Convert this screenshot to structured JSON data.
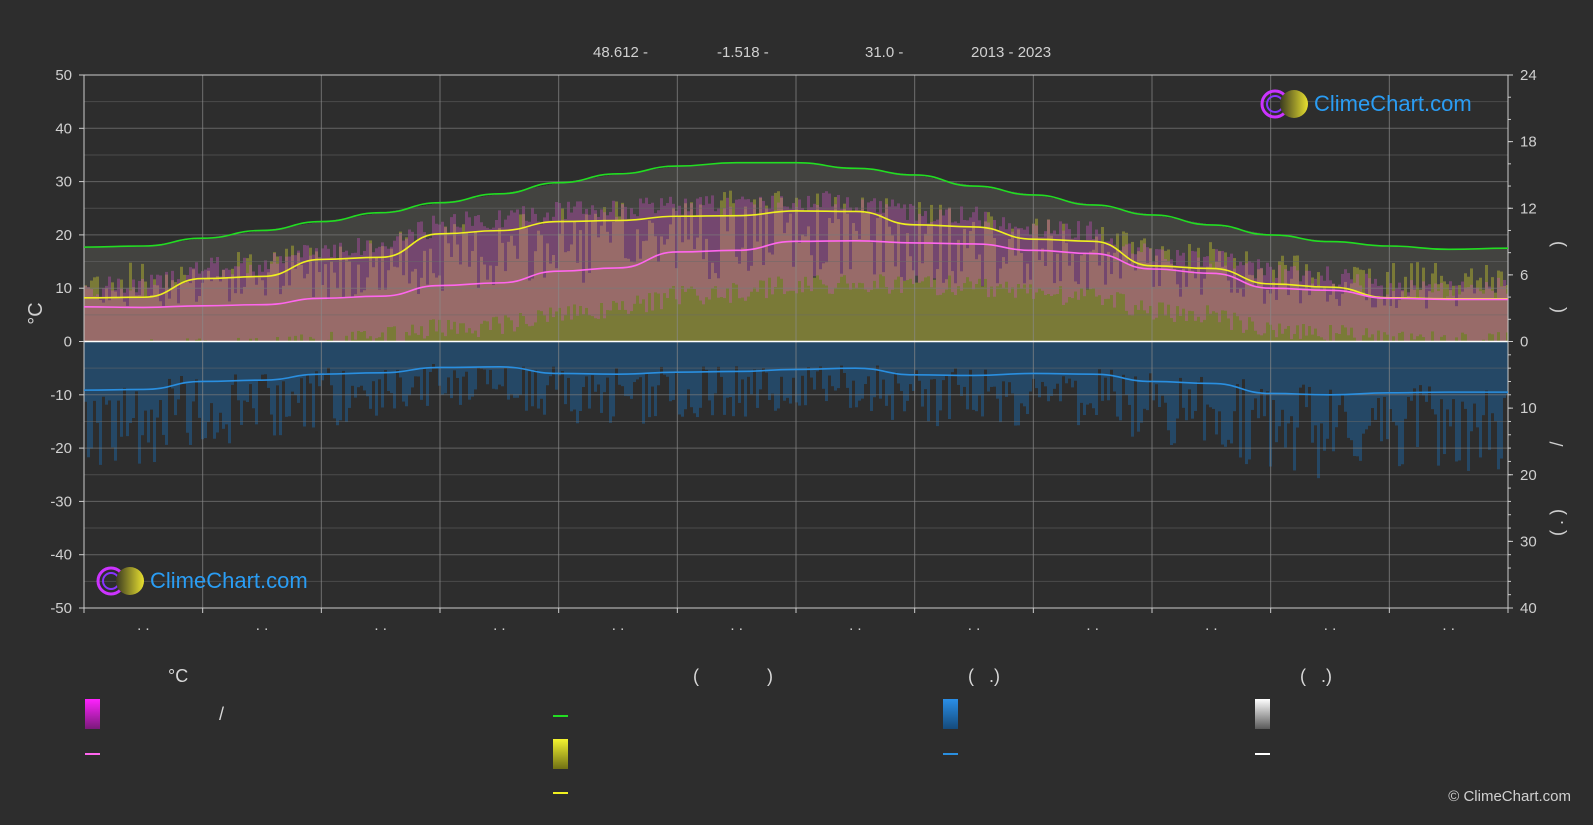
{
  "header": {
    "lat": "48.612 -",
    "lon": "-1.518 -",
    "elev": "31.0 -",
    "years": "2013 - 2023"
  },
  "logo_text": "ClimeChart.com",
  "copyright": "© ClimeChart.com",
  "legend": {
    "col1_head": "°C",
    "col1_slash": "/",
    "col2_head_open": "(",
    "col2_head_close": ")",
    "col3_head": "(   .)",
    "col4_head": "(   .)"
  },
  "chart_data": {
    "type": "line",
    "x_tick_labels": [
      ". .",
      ". .",
      ". .",
      ". .",
      ". .",
      ". .",
      ". .",
      ". .",
      ". .",
      ". .",
      ". .",
      ". ."
    ],
    "ylabel": "°C",
    "ylim": [
      -50,
      50
    ],
    "y_ticks": [
      50,
      40,
      30,
      20,
      10,
      0,
      -10,
      -20,
      -30,
      -40,
      -50
    ],
    "right_upper_ticks": [
      24,
      18,
      12,
      6,
      0
    ],
    "right_upper_lim": [
      0,
      24
    ],
    "right_lower_ticks": [
      10,
      20,
      30,
      40
    ],
    "right_lower_lim": [
      0,
      40
    ],
    "right_axis_labels": [
      ")",
      "(",
      "/",
      ")",
      "( ."
    ],
    "grid": true,
    "series": [
      {
        "color": "#22dd22",
        "unit": "hours",
        "values": [
          8.5,
          8.6,
          9.3,
          10.0,
          10.8,
          11.6,
          12.5,
          13.3,
          14.3,
          15.1,
          15.8,
          16.1,
          16.1,
          15.6,
          15.0,
          14.0,
          13.2,
          12.3,
          11.4,
          10.5,
          9.6,
          9.0,
          8.6,
          8.3,
          8.4
        ]
      },
      {
        "color": "#f0f020",
        "unit": "°C",
        "values": [
          8.2,
          8.3,
          11.8,
          12.2,
          15.4,
          15.8,
          20.2,
          20.8,
          22.5,
          22.7,
          23.5,
          23.6,
          24.5,
          24.4,
          21.9,
          21.5,
          19.2,
          18.8,
          14.2,
          13.7,
          10.8,
          10.2,
          8.2,
          8.0,
          8.0
        ]
      },
      {
        "color": "#ff66ee",
        "unit": "°C",
        "values": [
          6.5,
          6.4,
          6.7,
          6.9,
          8.1,
          8.5,
          10.5,
          11.0,
          13.2,
          13.8,
          16.8,
          17.1,
          18.8,
          18.9,
          18.5,
          18.3,
          17.1,
          16.5,
          13.6,
          12.8,
          10.0,
          9.6,
          8.1,
          7.9,
          7.9
        ]
      },
      {
        "color": "#2a8fe0",
        "unit": "mm",
        "values": [
          7.3,
          7.2,
          6.0,
          5.8,
          4.9,
          4.7,
          3.9,
          3.8,
          4.8,
          4.9,
          4.6,
          4.5,
          4.2,
          4.0,
          5.0,
          5.1,
          4.8,
          4.9,
          6.0,
          6.3,
          7.8,
          8.0,
          7.7,
          7.6,
          7.6
        ]
      }
    ]
  }
}
